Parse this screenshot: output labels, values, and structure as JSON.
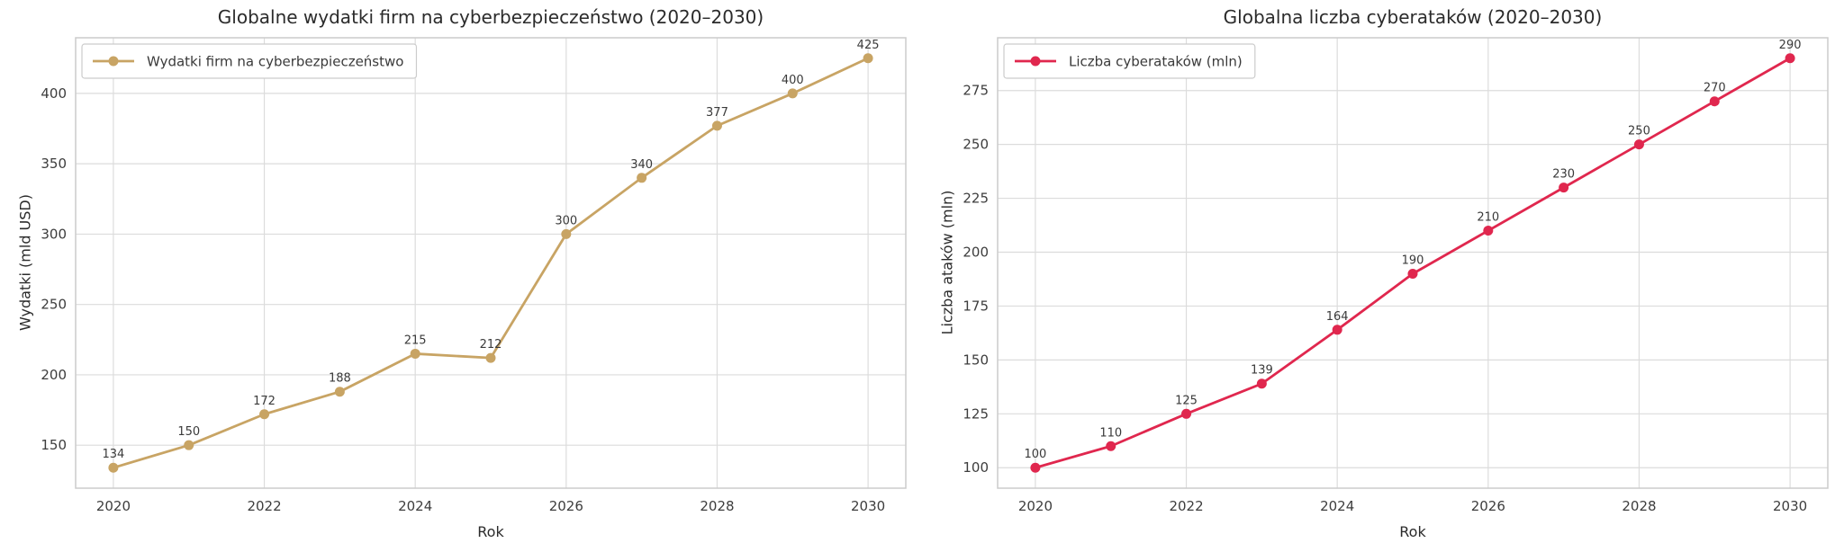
{
  "figure": {
    "background": "#ffffff",
    "grid_color": "#dcdcdc",
    "spine_color": "#cccccc",
    "text_color": "#2b2b2b",
    "tick_color": "#3d3d3d",
    "annotation_color": "#3a3a3a"
  },
  "chart_data": [
    {
      "type": "line",
      "title": "Globalne wydatki firm na cyberbezpieczeństwo (2020–2030)",
      "xlabel": "Rok",
      "ylabel": "Wydatki (mld USD)",
      "legend": {
        "label": "Wydatki firm na cyberbezpieczeństwo",
        "position": "upper left"
      },
      "color": "#c8a464",
      "x": [
        2020,
        2021,
        2022,
        2023,
        2024,
        2025,
        2026,
        2027,
        2028,
        2029,
        2030
      ],
      "values": [
        134,
        150,
        172,
        188,
        215,
        212,
        300,
        340,
        377,
        400,
        425
      ],
      "point_labels": [
        "134",
        "150",
        "172",
        "188",
        "215",
        "212",
        "300",
        "340",
        "377",
        "400",
        "425"
      ],
      "xticks": [
        2020,
        2022,
        2024,
        2026,
        2028,
        2030
      ],
      "yticks": [
        150,
        200,
        250,
        300,
        350,
        400
      ],
      "xlim": [
        2019.5,
        2030.5
      ],
      "ylim": [
        119.45,
        439.55
      ],
      "grid": true
    },
    {
      "type": "line",
      "title": "Globalna liczba cyberataków (2020–2030)",
      "xlabel": "Rok",
      "ylabel": "Liczba ataków (mln)",
      "legend": {
        "label": "Liczba cyberataków (mln)",
        "position": "upper left"
      },
      "color": "#e0274e",
      "x": [
        2020,
        2021,
        2022,
        2023,
        2024,
        2025,
        2026,
        2027,
        2028,
        2029,
        2030
      ],
      "values": [
        100,
        110,
        125,
        139,
        164,
        190,
        210,
        230,
        250,
        270,
        290
      ],
      "point_labels": [
        "100",
        "110",
        "125",
        "139",
        "164",
        "190",
        "210",
        "230",
        "250",
        "270",
        "290"
      ],
      "xticks": [
        2020,
        2022,
        2024,
        2026,
        2028,
        2030
      ],
      "yticks": [
        100,
        125,
        150,
        175,
        200,
        225,
        250,
        275
      ],
      "xlim": [
        2019.5,
        2030.5
      ],
      "ylim": [
        90.5,
        299.5
      ],
      "grid": true
    }
  ]
}
